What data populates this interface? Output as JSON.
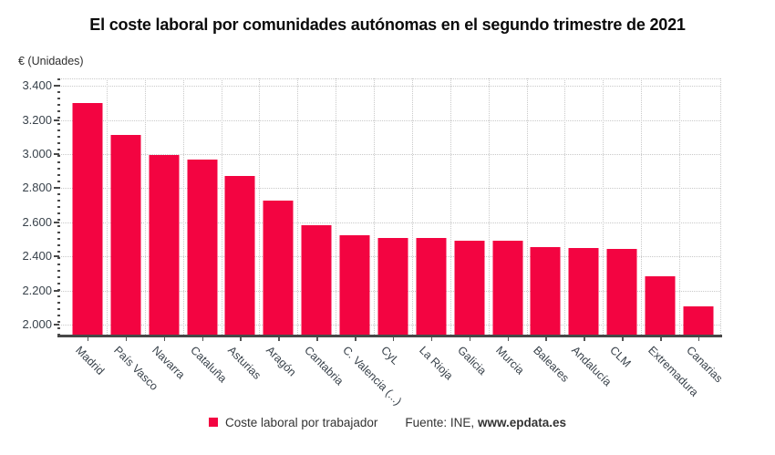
{
  "title": "El coste laboral por comunidades autónomas en el segundo trimestre de 2021",
  "y_unit_label": "€ (Unidades)",
  "legend": {
    "label": "Coste laboral por trabajador"
  },
  "source": {
    "prefix": "Fuente: INE, ",
    "bold": "www.epdata.es"
  },
  "colors": {
    "bar": "#f30441",
    "grid": "#c9c9c9",
    "axis": "#4a4a4a",
    "text": "#39424b"
  },
  "chart_data": {
    "type": "bar",
    "title": "El coste laboral por comunidades autónomas en el segundo trimestre de 2021",
    "xlabel": "",
    "ylabel": "€ (Unidades)",
    "series_name": "Coste laboral por trabajador",
    "legend_position": "bottom",
    "grid": true,
    "ylim": [
      1930,
      3445
    ],
    "yticks": [
      2000,
      2200,
      2400,
      2600,
      2800,
      3000,
      3200,
      3400
    ],
    "ytick_labels": [
      "2.000",
      "2.200",
      "2.400",
      "2.600",
      "2.800",
      "3.000",
      "3.200",
      "3.400"
    ],
    "categories": [
      "Madrid",
      "País Vasco",
      "Navarra",
      "Cataluña",
      "Asturias",
      "Aragón",
      "Cantabria",
      "C. Valencia (...)",
      "CyL",
      "La Rioja",
      "Galicia",
      "Murcia",
      "Baleares",
      "Andalucía",
      "CLM",
      "Extremadura",
      "Canarias"
    ],
    "values": [
      3298,
      3113,
      2995,
      2967,
      2872,
      2728,
      2584,
      2523,
      2509,
      2507,
      2494,
      2492,
      2457,
      2450,
      2446,
      2284,
      2108
    ]
  }
}
